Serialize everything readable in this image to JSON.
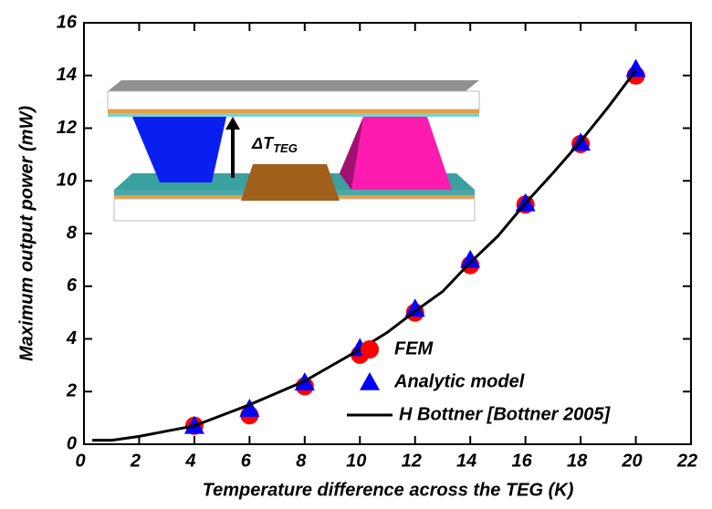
{
  "chart_data": {
    "type": "scatter",
    "x_label": "Temperature difference across the TEG (K)",
    "y_label": "Maximum output power (mW)",
    "xlim": [
      0,
      22
    ],
    "xticks": [
      0,
      2,
      4,
      6,
      8,
      10,
      12,
      14,
      16,
      18,
      20,
      22
    ],
    "ylim": [
      0,
      16
    ],
    "yticks": [
      0,
      2,
      4,
      6,
      8,
      10,
      12,
      14,
      16
    ],
    "legend": "lower right",
    "annotation": {
      "text": "ΔT",
      "subscript": "TEG"
    },
    "series": [
      {
        "name": "FEM",
        "color": "#ff0000",
        "mode": "marker",
        "marker": "circle",
        "x": [
          4,
          6,
          8,
          10,
          12,
          14,
          16,
          18,
          20
        ],
        "values": [
          0.7,
          1.1,
          2.2,
          3.4,
          5.0,
          6.8,
          9.1,
          11.4,
          14.0
        ]
      },
      {
        "name": "Analytic model",
        "color": "#0000ff",
        "mode": "marker",
        "marker": "triangle",
        "x": [
          4,
          6,
          8,
          10,
          12,
          14,
          16,
          18,
          20
        ],
        "values": [
          0.7,
          1.35,
          2.35,
          3.65,
          5.15,
          7.0,
          9.15,
          11.45,
          14.25
        ]
      },
      {
        "name": "H Bottner [Bottner 2005]",
        "color": "#000000",
        "mode": "line",
        "x": [
          0.3,
          1,
          2,
          3,
          4,
          5,
          6,
          7,
          8,
          9,
          10,
          11,
          12,
          13,
          14,
          15,
          16,
          17,
          18,
          19,
          20
        ],
        "values": [
          0.15,
          0.15,
          0.3,
          0.5,
          0.7,
          1.1,
          1.5,
          1.95,
          2.4,
          3.0,
          3.6,
          4.25,
          5.05,
          5.8,
          6.9,
          7.9,
          9.15,
          10.3,
          11.5,
          12.8,
          14.2
        ]
      }
    ]
  }
}
